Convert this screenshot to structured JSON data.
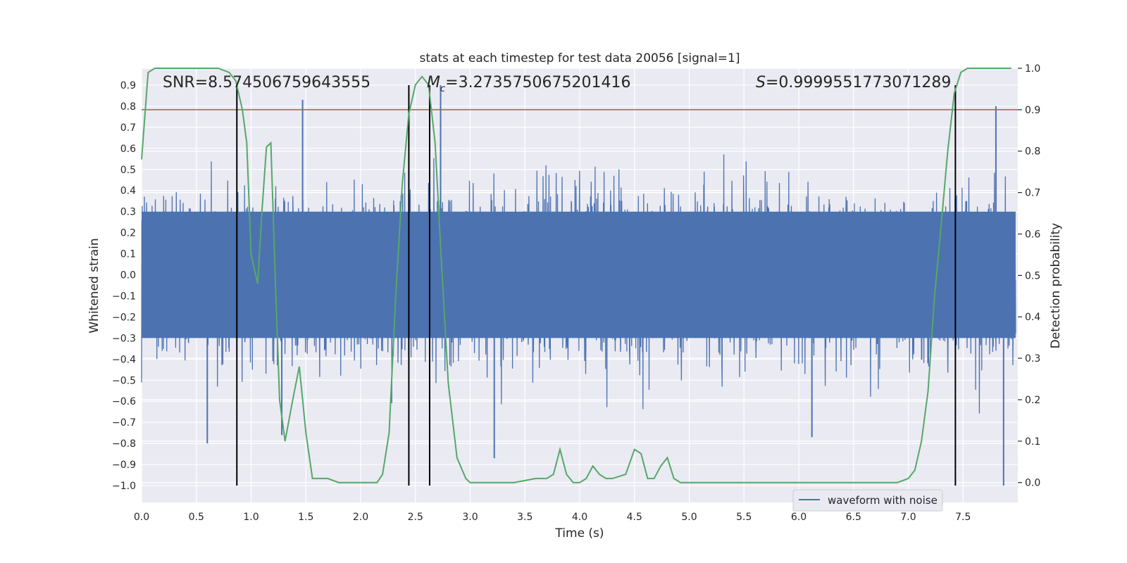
{
  "chart_data": {
    "type": "line",
    "title": "stats at each timestep for test data 20056 [signal=1]",
    "xlabel": "Time (s)",
    "ylabel": "Whitened strain",
    "y2label": "Detection probability",
    "xlim": [
      0.0,
      8.0
    ],
    "ylim": [
      -1.08,
      0.98
    ],
    "y2lim": [
      -0.048,
      1.0
    ],
    "x_ticks": [
      0.0,
      0.5,
      1.0,
      1.5,
      2.0,
      2.5,
      3.0,
      3.5,
      4.0,
      4.5,
      5.0,
      5.5,
      6.0,
      6.5,
      7.0,
      7.5
    ],
    "x_tick_labels": [
      "0.0",
      "0.5",
      "1.0",
      "1.5",
      "2.0",
      "2.5",
      "3.0",
      "3.5",
      "4.0",
      "4.5",
      "5.0",
      "5.5",
      "6.0",
      "6.5",
      "7.0",
      "7.5"
    ],
    "y_ticks": [
      0.9,
      0.8,
      0.7,
      0.6,
      0.5,
      0.4,
      0.3,
      0.2,
      0.1,
      0.0,
      -0.1,
      -0.2,
      -0.3,
      -0.4,
      -0.5,
      -0.6,
      -0.7,
      -0.8,
      -0.9,
      -1.0
    ],
    "y_tick_labels": [
      "0.9",
      "0.8",
      "0.7",
      "0.6",
      "0.5",
      "0.4",
      "0.3",
      "0.2",
      "0.1",
      "0.0",
      "−0.1",
      "−0.2",
      "−0.3",
      "−0.4",
      "−0.5",
      "−0.6",
      "−0.7",
      "−0.8",
      "−0.9",
      "−1.0"
    ],
    "y2_ticks": [
      1.0,
      0.9,
      0.8,
      0.7,
      0.6,
      0.5,
      0.4,
      0.3,
      0.2,
      0.1,
      0.0
    ],
    "y2_tick_labels": [
      "1.0",
      "0.9",
      "0.8",
      "0.7",
      "0.6",
      "0.5",
      "0.4",
      "0.3",
      "0.2",
      "0.1",
      "0.0"
    ],
    "grid": true,
    "legend": {
      "position": "lower-right",
      "entries": [
        "waveform with noise"
      ]
    },
    "annotations": {
      "snr": "SNR=8.574506759643555",
      "mc_symbol": "M",
      "mc_subscript": "c",
      "mc_value": "=3.2735750675201416",
      "s_symbol": "S",
      "s_value": "=0.9999551773071289"
    },
    "series": [
      {
        "name": "waveform with noise",
        "color": "#4c72b0",
        "kind": "noise",
        "x_range": [
          0.0,
          7.98
        ],
        "core_amplitude": 0.3,
        "spike_amplitude": 0.58,
        "highlight_spikes": [
          {
            "x": 1.47,
            "y": 0.83
          },
          {
            "x": 2.73,
            "y": 0.9
          },
          {
            "x": 3.22,
            "y": -0.87
          },
          {
            "x": 6.12,
            "y": -0.77
          },
          {
            "x": 7.8,
            "y": 0.8
          },
          {
            "x": 7.87,
            "y": -1.0
          },
          {
            "x": 0.6,
            "y": -0.8
          },
          {
            "x": 1.28,
            "y": -0.76
          }
        ]
      },
      {
        "name": "detection probability",
        "color": "#55a868",
        "axis": "right",
        "x": [
          0.0,
          0.06,
          0.12,
          0.3,
          0.5,
          0.7,
          0.8,
          0.86,
          0.92,
          0.96,
          1.0,
          1.06,
          1.1,
          1.14,
          1.18,
          1.22,
          1.26,
          1.31,
          1.38,
          1.44,
          1.5,
          1.56,
          1.6,
          1.7,
          1.8,
          2.0,
          2.15,
          2.2,
          2.26,
          2.32,
          2.38,
          2.44,
          2.5,
          2.56,
          2.62,
          2.68,
          2.74,
          2.8,
          2.88,
          2.96,
          3.0,
          3.2,
          3.4,
          3.6,
          3.7,
          3.76,
          3.82,
          3.88,
          3.94,
          4.0,
          4.06,
          4.12,
          4.18,
          4.24,
          4.3,
          4.42,
          4.5,
          4.56,
          4.62,
          4.68,
          4.74,
          4.8,
          4.86,
          4.92,
          5.0,
          5.2,
          5.4,
          5.6,
          5.8,
          6.0,
          6.3,
          6.6,
          6.9,
          7.0,
          7.06,
          7.12,
          7.18,
          7.24,
          7.3,
          7.36,
          7.42,
          7.48,
          7.54,
          7.6,
          7.94
        ],
        "values": [
          0.78,
          0.99,
          1.0,
          1.0,
          1.0,
          1.0,
          0.99,
          0.97,
          0.9,
          0.82,
          0.55,
          0.48,
          0.66,
          0.81,
          0.82,
          0.5,
          0.2,
          0.1,
          0.2,
          0.28,
          0.12,
          0.01,
          0.01,
          0.01,
          0.0,
          0.0,
          0.0,
          0.02,
          0.12,
          0.45,
          0.72,
          0.89,
          0.96,
          0.98,
          0.96,
          0.82,
          0.52,
          0.24,
          0.06,
          0.01,
          0.0,
          0.0,
          0.0,
          0.01,
          0.01,
          0.02,
          0.08,
          0.02,
          0.0,
          0.0,
          0.01,
          0.04,
          0.02,
          0.01,
          0.01,
          0.02,
          0.08,
          0.07,
          0.01,
          0.01,
          0.04,
          0.06,
          0.01,
          0.0,
          0.0,
          0.0,
          0.0,
          0.0,
          0.0,
          0.0,
          0.0,
          0.0,
          0.0,
          0.01,
          0.03,
          0.1,
          0.22,
          0.45,
          0.62,
          0.8,
          0.94,
          0.99,
          1.0,
          1.0,
          1.0
        ]
      }
    ],
    "threshold": {
      "axis": "right",
      "value": 0.9,
      "color": "#c44e52"
    },
    "vertical_lines": [
      0.87,
      2.44,
      2.63,
      7.43
    ],
    "vertical_line_range": [
      -1.0,
      0.9
    ]
  }
}
